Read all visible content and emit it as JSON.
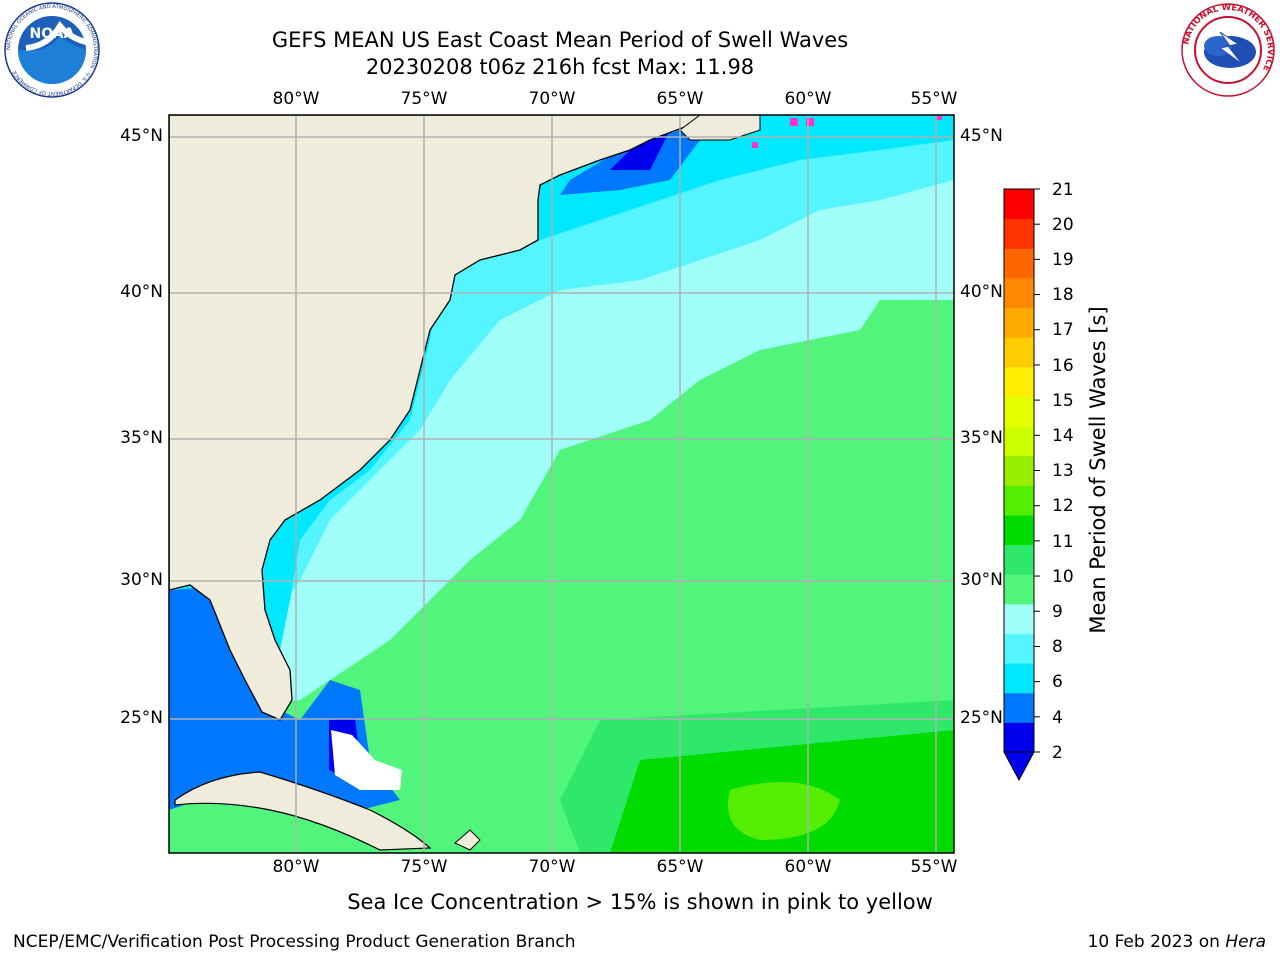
{
  "header": {
    "title_line1": "GEFS MEAN US East Coast Mean Period of Swell Waves",
    "title_line2": "20230208 t06z 216h fcst   Max: 11.98"
  },
  "logos": {
    "left": {
      "name": "NOAA",
      "text": "NOAA",
      "ring_text": "NATIONAL OCEANIC AND ATMOSPHERIC ADMINISTRATION · U.S. DEPARTMENT OF COMMERCE"
    },
    "right": {
      "name": "National Weather Service",
      "ring_text": "NATIONAL WEATHER SERVICE"
    }
  },
  "map": {
    "lon_ticks": [
      "80°W",
      "75°W",
      "70°W",
      "65°W",
      "60°W",
      "55°W"
    ],
    "lat_ticks": [
      "45°N",
      "40°N",
      "35°N",
      "30°N",
      "25°N"
    ],
    "grid": true,
    "land_color": "#efecdc",
    "coast_color": "#000000",
    "grid_color": "#b0b0b0"
  },
  "colorbar": {
    "label": "Mean Period of Swell Waves [s]",
    "ticks": [
      "21",
      "20",
      "19",
      "18",
      "17",
      "16",
      "15",
      "14",
      "13",
      "12",
      "11",
      "10",
      "9",
      "8",
      "6",
      "4",
      "2"
    ],
    "colors": [
      "#0000ee",
      "#0077ff",
      "#00e8ff",
      "#55f5ff",
      "#a0fff8",
      "#52f57c",
      "#2fe86a",
      "#00db00",
      "#55ee00",
      "#99ee00",
      "#ccff00",
      "#e6ff00",
      "#ffee00",
      "#ffcc00",
      "#ffaa00",
      "#ff8800",
      "#ff6600",
      "#ff3300",
      "#ff0000"
    ],
    "extend": "min"
  },
  "notes": {
    "sea_ice": "Sea Ice Concentration > 15% is shown in pink to yellow"
  },
  "footer": {
    "left": "NCEP/EMC/Verification Post Processing Product Generation Branch",
    "right_date": "10 Feb 2023 on ",
    "right_host": "Hera"
  }
}
